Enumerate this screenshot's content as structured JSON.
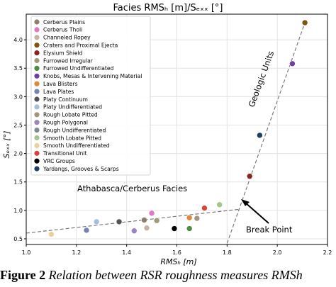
{
  "chart_data": {
    "type": "scatter",
    "title": "Facies RMSₕ [m]/Sₑₓₓ [°]",
    "xlabel": "RMSₕ [m]",
    "ylabel": "Sₑₓₓ [°]",
    "xlim": [
      1.0,
      2.2
    ],
    "ylim": [
      0.4,
      4.45
    ],
    "xticks": [
      "1.0",
      "1.2",
      "1.4",
      "1.6",
      "1.8",
      "2.0",
      "2.2"
    ],
    "yticks": [
      "0.5",
      "1.0",
      "1.5",
      "2.0",
      "2.5",
      "3.0",
      "3.5",
      "4.0"
    ],
    "grid": true,
    "legend_position": "top-left",
    "series": [
      {
        "name": "Cerberus Plains",
        "color": "#8c7e6a",
        "x": 1.47,
        "y": 0.83
      },
      {
        "name": "Cerberus Tholi",
        "color": "#e377c2",
        "x": 1.5,
        "y": 0.95
      },
      {
        "name": "Channeled Ropey",
        "color": "#c4b4a6",
        "x": 1.48,
        "y": 0.69
      },
      {
        "name": "Craters and Proximal Ejecta",
        "color": "#7f5410",
        "x": 2.11,
        "y": 4.3
      },
      {
        "name": "Elysium Shield",
        "color": "#8b2323",
        "x": 1.89,
        "y": 1.6
      },
      {
        "name": "Furrowed Irregular",
        "color": "#9e9a7b",
        "x": 1.52,
        "y": 0.82
      },
      {
        "name": "Furrowed Undifferentiated",
        "color": "#4f8c3f",
        "x": 1.65,
        "y": 0.68
      },
      {
        "name": "Knobs, Mesas & Intervening Material",
        "color": "#6f3fa8",
        "x": 2.06,
        "y": 3.58
      },
      {
        "name": "Lava Blisters",
        "color": "#e08a35",
        "x": 1.65,
        "y": 0.87
      },
      {
        "name": "Lava Plates",
        "color": "#7682b8",
        "x": 1.24,
        "y": 0.65
      },
      {
        "name": "Platy Continuum",
        "color": "#555555",
        "x": 1.37,
        "y": 0.8
      },
      {
        "name": "Platy Undifferentiated",
        "color": "#a8bcdc",
        "x": 1.28,
        "y": 0.8
      },
      {
        "name": "Rough Lobate Pitted",
        "color": "#a39480",
        "x": 1.68,
        "y": 0.86
      },
      {
        "name": "Rough Polygonal",
        "color": "#9b85bd",
        "x": 1.43,
        "y": 0.64
      },
      {
        "name": "Rough Undifferentiated",
        "color": "#7f8c8d",
        "x": 1.77,
        "y": 1.1
      },
      {
        "name": "Smooth Lobate Pitted",
        "color": "#a3c48a",
        "x": 1.77,
        "y": 1.1
      },
      {
        "name": "Smooth Undifferentiated",
        "color": "#e8d39a",
        "x": 1.1,
        "y": 0.58
      },
      {
        "name": "Transitional Unit",
        "color": "#d9423f",
        "x": 1.71,
        "y": 1.04
      },
      {
        "name": "VRC Groups",
        "color": "#000000",
        "x": 1.59,
        "y": 0.68
      },
      {
        "name": "Yardangs, Grooves & Scarps",
        "color": "#1f3f66",
        "x": 1.93,
        "y": 2.32
      }
    ],
    "trend_lines": [
      {
        "x": [
          1.0,
          1.85
        ],
        "y": [
          0.6,
          1.02
        ]
      },
      {
        "x": [
          1.8,
          2.11
        ],
        "y": [
          0.42,
          4.3
        ]
      }
    ],
    "annotations": [
      {
        "text": "Athabasca/Cerberus Facies"
      },
      {
        "text": "Geologic Units"
      },
      {
        "text": "Break Point"
      }
    ]
  },
  "caption": {
    "label": "Figure 2",
    "text": " Relation between RSR roughness measures RMSh"
  }
}
